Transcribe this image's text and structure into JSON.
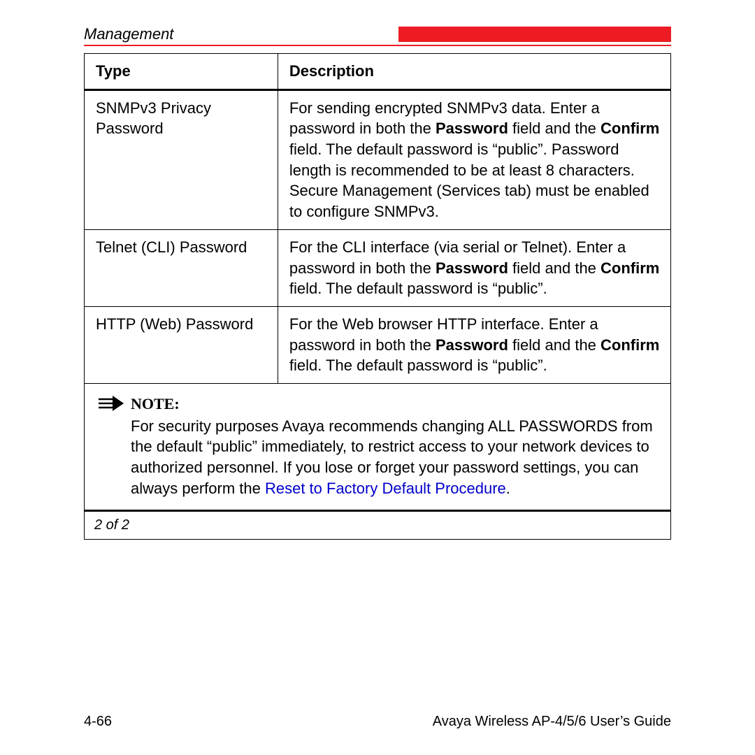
{
  "colors": {
    "brand_red": "#ed1c24",
    "link_blue": "#0000cc",
    "text": "#000000",
    "border": "#000000",
    "background": "#ffffff"
  },
  "header": {
    "section_title": "Management"
  },
  "table": {
    "columns": [
      "Type",
      "Description"
    ],
    "rows": [
      {
        "type": "SNMPv3 Privacy Password",
        "description_parts": [
          {
            "t": "For sending encrypted SNMPv3 data. Enter a password in both the "
          },
          {
            "t": "Password",
            "b": true
          },
          {
            "t": " field and the "
          },
          {
            "t": "Confirm",
            "b": true
          },
          {
            "t": " field. The default password is “public”. Password length is recommended to be at least 8 characters. Secure Management (Services tab) must be enabled to configure SNMPv3."
          }
        ]
      },
      {
        "type": "Telnet (CLI) Password",
        "description_parts": [
          {
            "t": "For the CLI interface (via serial or Telnet). Enter a password in both the "
          },
          {
            "t": "Password",
            "b": true
          },
          {
            "t": " field and the "
          },
          {
            "t": "Confirm",
            "b": true
          },
          {
            "t": " field. The default password is “public”."
          }
        ]
      },
      {
        "type": "HTTP (Web) Password",
        "description_parts": [
          {
            "t": "For the Web browser HTTP interface. Enter a password in both the "
          },
          {
            "t": "Password",
            "b": true
          },
          {
            "t": " field and the "
          },
          {
            "t": "Confirm",
            "b": true
          },
          {
            "t": " field. The default password is “public”."
          }
        ]
      }
    ],
    "note": {
      "label": "NOTE:",
      "body_parts": [
        {
          "t": "For security purposes Avaya recommends changing ALL PASSWORDS from the default “public” immediately, to restrict access to your network devices to authorized personnel. If you lose or forget your password settings, you can always perform the "
        },
        {
          "t": "Reset to Factory Default Procedure",
          "link": true
        },
        {
          "t": "."
        }
      ]
    },
    "pager": "2 of 2"
  },
  "footer": {
    "page_number": "4-66",
    "guide_title": "Avaya Wireless AP-4/5/6 User’s Guide"
  }
}
